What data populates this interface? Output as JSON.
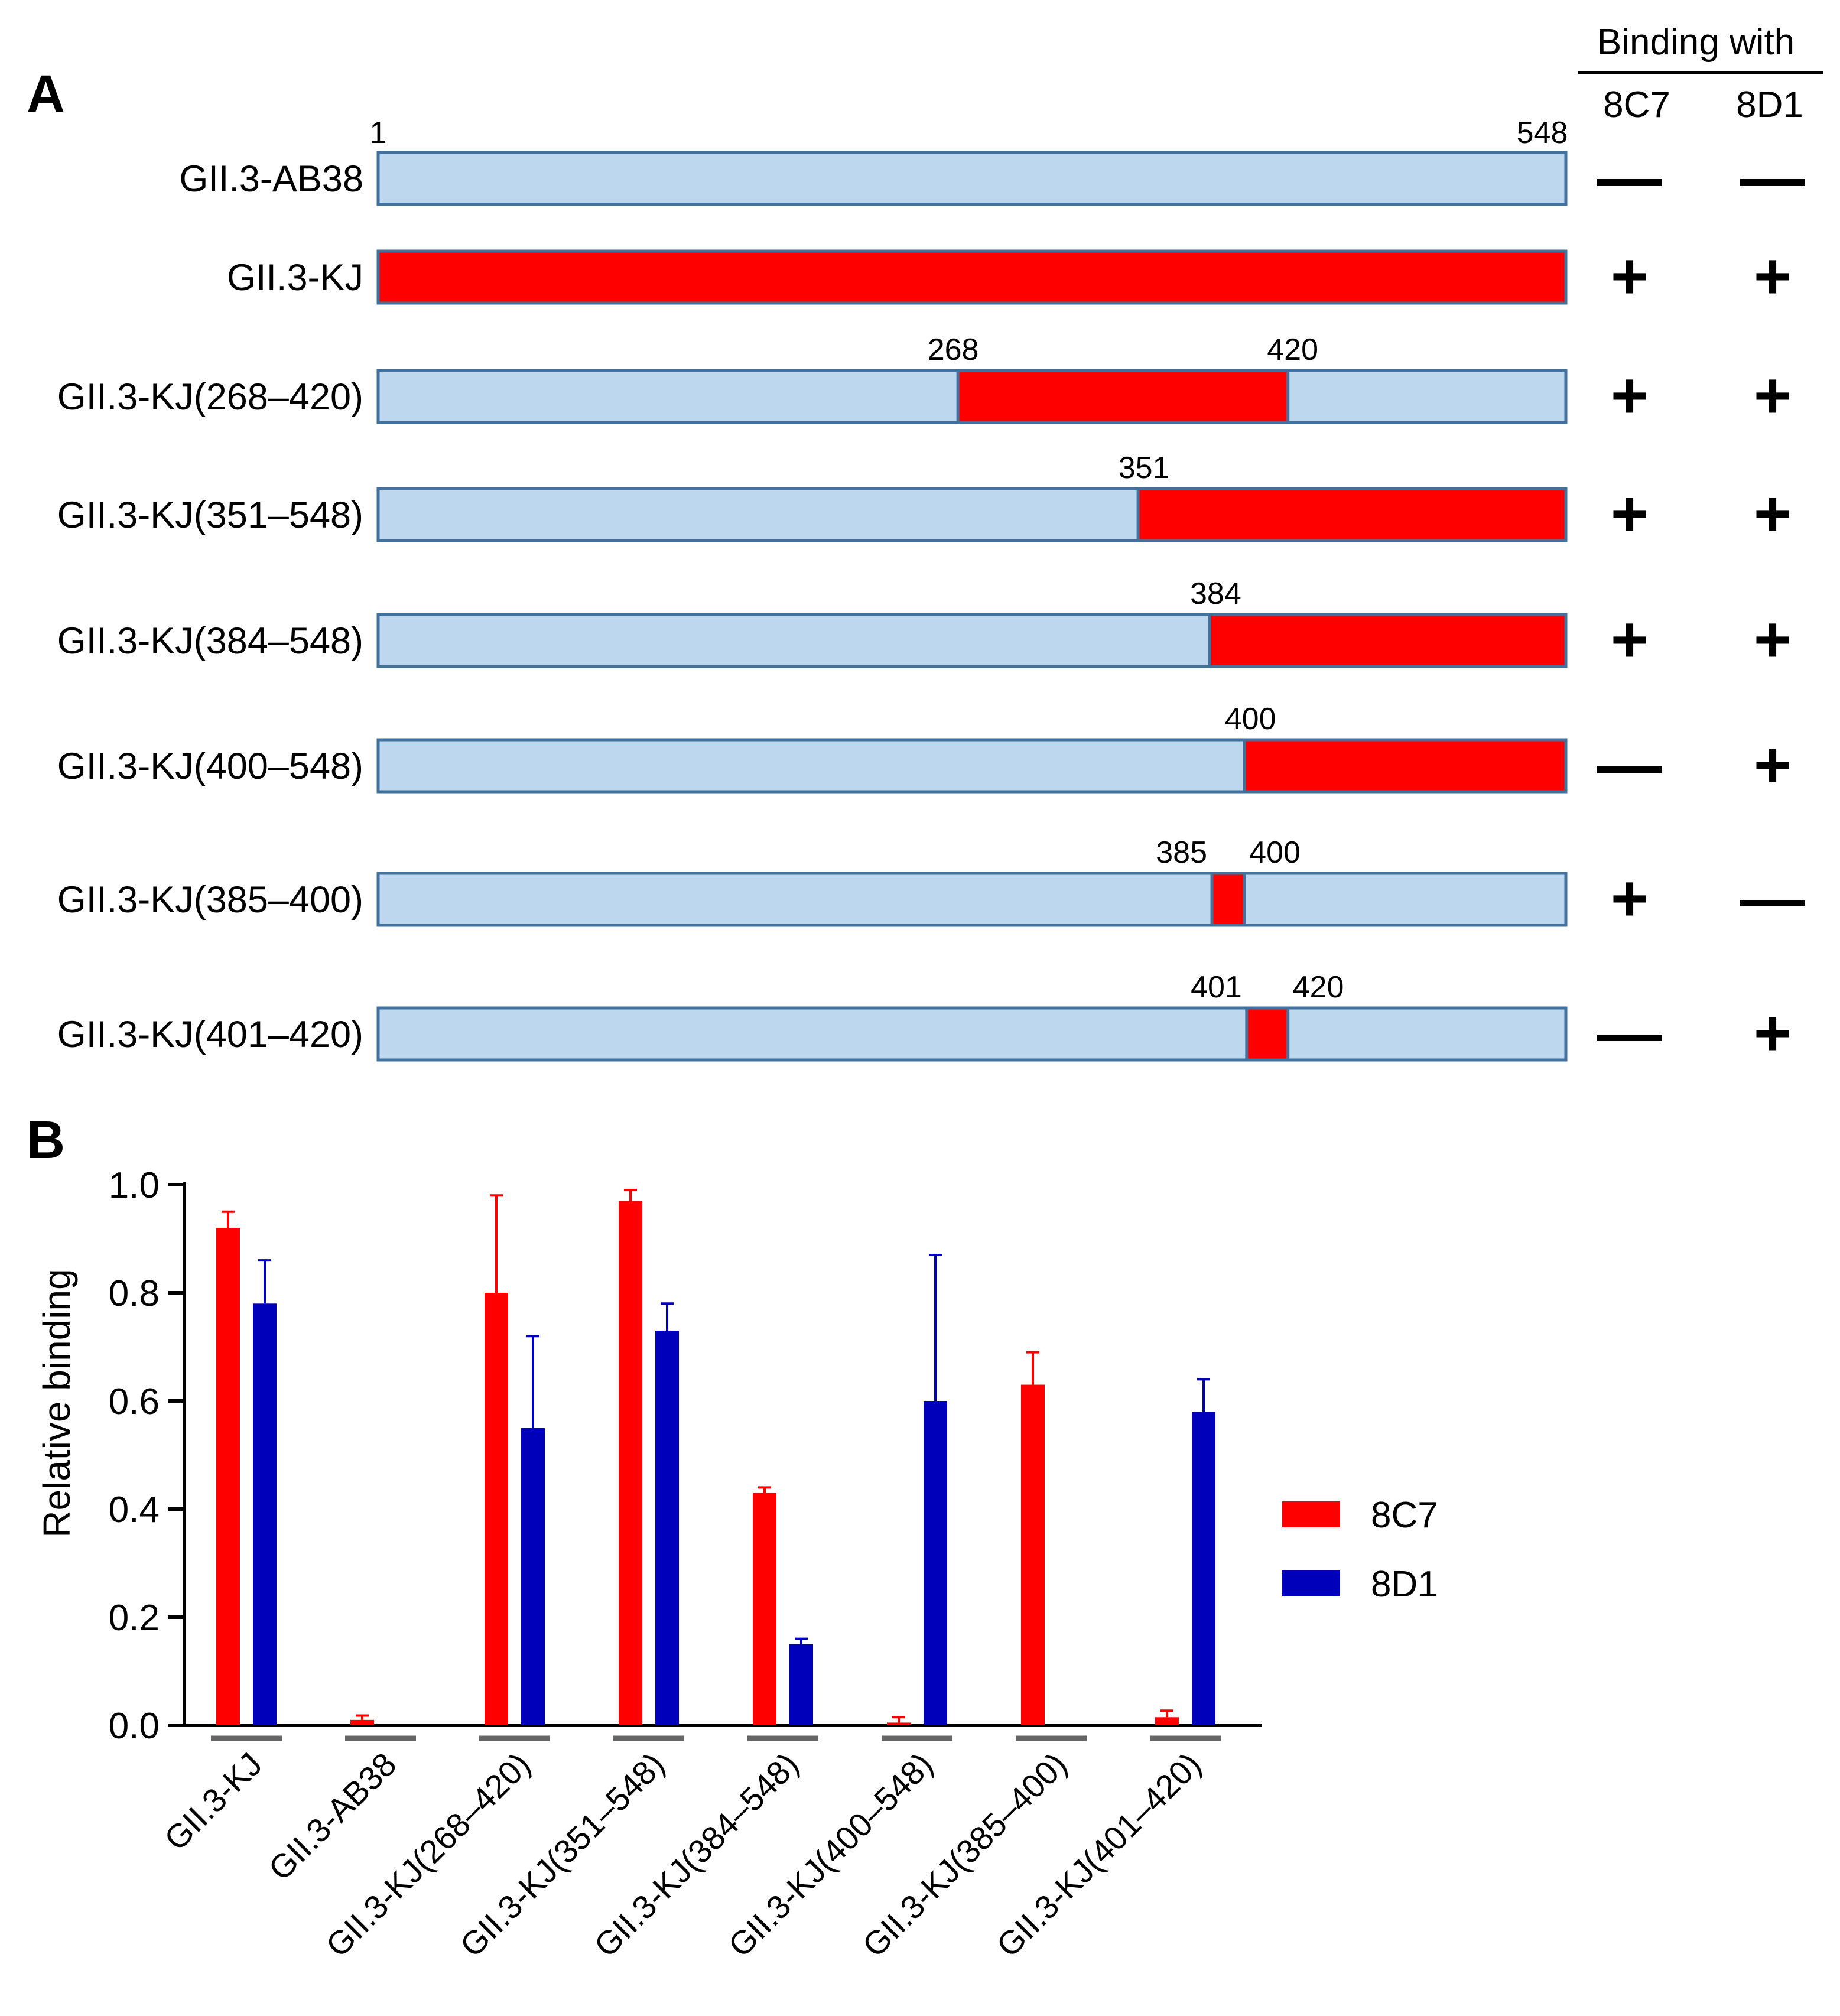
{
  "panel_a": {
    "letter": "A",
    "header": {
      "title": "Binding with",
      "col1": "8C7",
      "col2": "8D1"
    },
    "scale_start": "1",
    "scale_end": "548",
    "constructs": [
      {
        "name": "GII.3-AB38",
        "segment": null,
        "labels": [],
        "c8C7": "—",
        "c8D1": "—"
      },
      {
        "name": "GII.3-KJ",
        "segment": [
          1,
          548
        ],
        "labels": [],
        "c8C7": "+",
        "c8D1": "+"
      },
      {
        "name": "GII.3-KJ(268–420)",
        "segment": [
          268,
          420
        ],
        "labels": [
          "268",
          "420"
        ],
        "c8C7": "+",
        "c8D1": "+"
      },
      {
        "name": "GII.3-KJ(351–548)",
        "segment": [
          351,
          548
        ],
        "labels": [
          "351"
        ],
        "c8C7": "+",
        "c8D1": "+"
      },
      {
        "name": "GII.3-KJ(384–548)",
        "segment": [
          384,
          548
        ],
        "labels": [
          "384"
        ],
        "c8C7": "+",
        "c8D1": "+"
      },
      {
        "name": "GII.3-KJ(400–548)",
        "segment": [
          400,
          548
        ],
        "labels": [
          "400"
        ],
        "c8C7": "—",
        "c8D1": "+"
      },
      {
        "name": "GII.3-KJ(385–400)",
        "segment": [
          385,
          400
        ],
        "labels": [
          "385",
          "400"
        ],
        "c8C7": "+",
        "c8D1": "—"
      },
      {
        "name": "GII.3-KJ(401–420)",
        "segment": [
          401,
          420
        ],
        "labels": [
          "401",
          "420"
        ],
        "c8C7": "—",
        "c8D1": "+"
      }
    ],
    "colors": {
      "bar_fill": "#bdd7ee",
      "bar_stroke": "#41719c",
      "segment_fill": "#ff0000"
    }
  },
  "chart_data": {
    "type": "bar",
    "panel_letter": "B",
    "title": "",
    "xlabel": "",
    "ylabel": "Relative binding",
    "ylim": [
      0,
      1.0
    ],
    "yticks": [
      "0.0",
      "0.2",
      "0.4",
      "0.6",
      "0.8",
      "1.0"
    ],
    "legend_position": "right",
    "categories": [
      "GII.3-KJ",
      "GII.3-AB38",
      "GII.3-KJ(268–420)",
      "GII.3-KJ(351–548)",
      "GII.3-KJ(384–548)",
      "GII.3-KJ(400–548)",
      "GII.3-KJ(385–400)",
      "GII.3-KJ(401–420)"
    ],
    "series": [
      {
        "name": "8C7",
        "color": "#ff0000",
        "values": [
          0.92,
          0.01,
          0.8,
          0.97,
          0.43,
          0.005,
          0.63,
          0.015
        ],
        "errors": [
          0.03,
          0.008,
          0.18,
          0.02,
          0.01,
          0.01,
          0.06,
          0.012
        ]
      },
      {
        "name": "8D1",
        "color": "#0000bb",
        "values": [
          0.78,
          0.0,
          0.55,
          0.73,
          0.15,
          0.6,
          0.0,
          0.58
        ],
        "errors": [
          0.08,
          0.0,
          0.17,
          0.05,
          0.01,
          0.27,
          0.0,
          0.06
        ]
      }
    ]
  }
}
